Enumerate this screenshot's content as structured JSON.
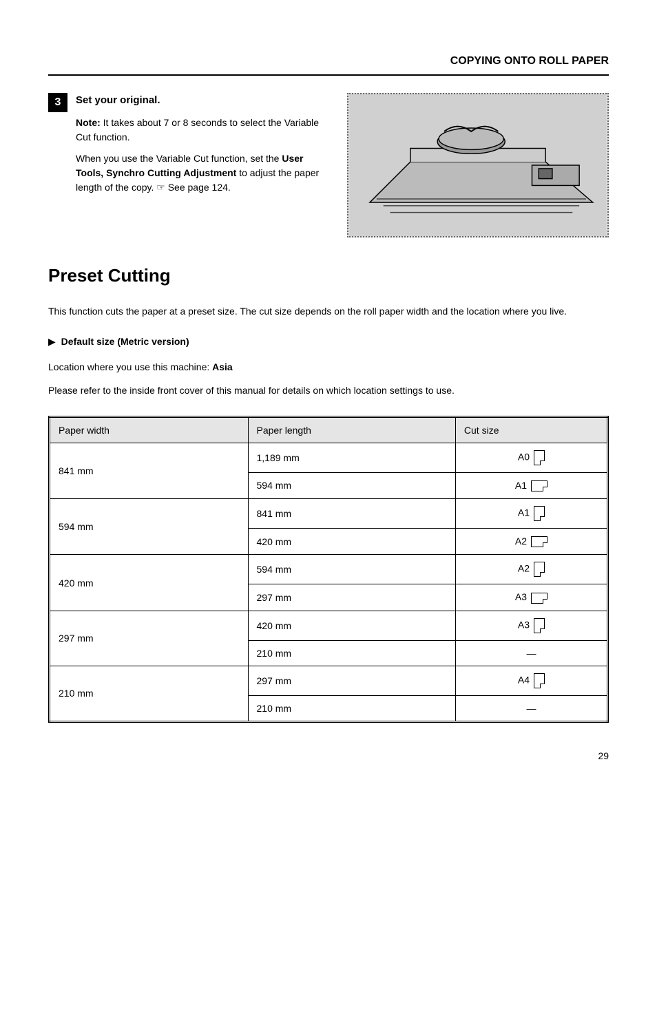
{
  "header": {
    "title": "COPYING ONTO ROLL PAPER"
  },
  "step": {
    "number": "3",
    "instruction": "Set your original.",
    "note1_label": "Note:",
    "note1_body": "It takes about 7 or 8 seconds to select the Variable Cut function.",
    "note2_prefix": "When you use the Variable Cut function, set the ",
    "note2_bold": "User Tools, Synchro Cutting Adjustment",
    "note2_suffix": " to adjust the paper length of the copy. ☞ See page 124.",
    "image_alt": "printer-diagram"
  },
  "section": {
    "title": "Preset Cutting",
    "intro": "This function cuts the paper at a preset size. The cut size depends on the roll paper width and the location where you live.",
    "default_label": "Default size (Metric version)",
    "location_prefix": "Location where you use this machine: ",
    "location_bold": "Asia",
    "location_desc": "Please refer to the inside front cover of this manual for details on which location settings to use."
  },
  "table": {
    "headers": [
      "Paper width",
      "Paper length",
      "Cut size"
    ],
    "rows": [
      {
        "width": "841 mm",
        "lengths": [
          {
            "length": "1,189 mm",
            "size": "A0",
            "orient": "portrait"
          },
          {
            "length": "594 mm",
            "size": "A1",
            "orient": "landscape"
          }
        ]
      },
      {
        "width": "594 mm",
        "lengths": [
          {
            "length": "841 mm",
            "size": "A1",
            "orient": "portrait"
          },
          {
            "length": "420 mm",
            "size": "A2",
            "orient": "landscape"
          }
        ]
      },
      {
        "width": "420 mm",
        "lengths": [
          {
            "length": "594 mm",
            "size": "A2",
            "orient": "portrait"
          },
          {
            "length": "297 mm",
            "size": "A3",
            "orient": "landscape"
          }
        ]
      },
      {
        "width": "297 mm",
        "lengths": [
          {
            "length": "420 mm",
            "size": "A3",
            "orient": "portrait"
          },
          {
            "length": "210 mm",
            "size": "—",
            "orient": "none"
          }
        ]
      },
      {
        "width": "210 mm",
        "lengths": [
          {
            "length": "297 mm",
            "size": "A4",
            "orient": "portrait"
          },
          {
            "length": "210 mm",
            "size": "—",
            "orient": "none"
          }
        ]
      }
    ]
  },
  "page_number": "29"
}
